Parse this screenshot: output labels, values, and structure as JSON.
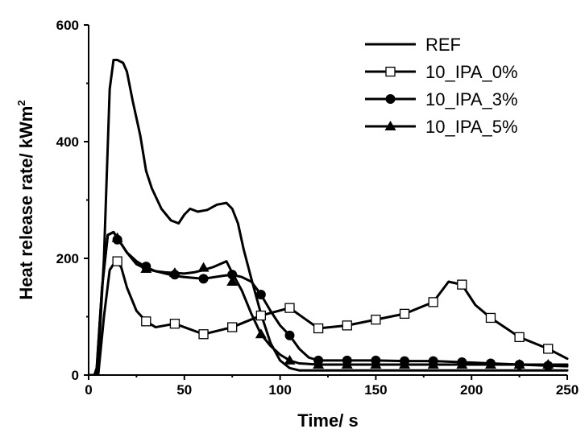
{
  "chart_data": {
    "type": "line",
    "title": "",
    "xlabel": "Time/ s",
    "ylabel_prefix": "Heat release rate/ kWm",
    "ylabel_superscript": "2",
    "xlim": [
      0,
      250
    ],
    "ylim": [
      0,
      600
    ],
    "x_ticks": [
      "0",
      "50",
      "100",
      "150",
      "200",
      "250"
    ],
    "y_ticks": [
      "0",
      "200",
      "400",
      "600"
    ],
    "grid": false,
    "legend_position": "top-right",
    "series": [
      {
        "name": "REF",
        "marker": "none",
        "x": [
          0,
          3,
          5,
          8,
          11,
          13,
          15,
          18,
          20,
          23,
          27,
          30,
          33,
          38,
          43,
          47,
          50,
          53,
          57,
          62,
          67,
          72,
          75,
          78,
          81,
          85,
          90,
          95,
          100,
          105,
          110,
          120,
          150,
          200,
          250
        ],
        "y": [
          0,
          0,
          20,
          200,
          490,
          540,
          540,
          535,
          520,
          470,
          410,
          350,
          320,
          285,
          265,
          260,
          275,
          285,
          280,
          283,
          292,
          295,
          285,
          260,
          215,
          165,
          105,
          55,
          25,
          12,
          8,
          8,
          8,
          8,
          8
        ]
      },
      {
        "name": "10_IPA_0%",
        "marker": "open-square",
        "x": [
          0,
          5,
          8,
          11,
          14,
          17,
          20,
          25,
          30,
          35,
          45,
          60,
          75,
          90,
          105,
          120,
          135,
          150,
          165,
          180,
          188,
          195,
          202,
          210,
          225,
          240,
          250
        ],
        "y": [
          0,
          0,
          100,
          180,
          195,
          185,
          150,
          110,
          92,
          82,
          88,
          70,
          82,
          102,
          115,
          80,
          85,
          95,
          105,
          125,
          160,
          155,
          120,
          98,
          65,
          45,
          28
        ],
        "markers_x": [
          15,
          30,
          45,
          60,
          75,
          90,
          105,
          120,
          135,
          150,
          165,
          180,
          195,
          210,
          225,
          240
        ],
        "markers_y": [
          195,
          92,
          88,
          70,
          82,
          102,
          115,
          80,
          85,
          95,
          105,
          125,
          155,
          98,
          65,
          45
        ]
      },
      {
        "name": "10_IPA_3%",
        "marker": "filled-circle",
        "x": [
          0,
          4,
          7,
          10,
          13,
          15,
          20,
          25,
          30,
          35,
          40,
          45,
          50,
          60,
          70,
          75,
          80,
          85,
          90,
          95,
          100,
          105,
          110,
          115,
          120,
          135,
          150,
          165,
          180,
          195,
          210,
          225,
          240,
          250
        ],
        "y": [
          0,
          0,
          150,
          240,
          245,
          235,
          210,
          195,
          185,
          178,
          174,
          170,
          168,
          165,
          170,
          172,
          168,
          160,
          138,
          110,
          85,
          68,
          45,
          30,
          25,
          25,
          25,
          24,
          24,
          22,
          20,
          18,
          16,
          15
        ],
        "markers_x": [
          15,
          30,
          45,
          60,
          75,
          90,
          105,
          120,
          135,
          150,
          165,
          180,
          195,
          210,
          225,
          240
        ],
        "markers_y": [
          232,
          186,
          172,
          165,
          172,
          138,
          68,
          25,
          25,
          25,
          24,
          24,
          22,
          20,
          18,
          16
        ]
      },
      {
        "name": "10_IPA_5%",
        "marker": "filled-triangle",
        "x": [
          0,
          4,
          7,
          10,
          13,
          15,
          20,
          25,
          30,
          35,
          40,
          45,
          50,
          55,
          60,
          65,
          70,
          72,
          75,
          80,
          85,
          90,
          95,
          100,
          105,
          110,
          120,
          135,
          150,
          165,
          180,
          195,
          210,
          225,
          240,
          250
        ],
        "y": [
          0,
          0,
          150,
          240,
          245,
          235,
          210,
          190,
          182,
          178,
          176,
          175,
          174,
          176,
          180,
          185,
          192,
          195,
          175,
          145,
          105,
          70,
          50,
          35,
          25,
          20,
          18,
          18,
          18,
          18,
          18,
          18,
          18,
          18,
          18,
          18
        ],
        "markers_x": [
          15,
          30,
          45,
          60,
          75,
          90,
          105,
          120,
          135,
          150,
          165,
          180,
          195,
          210,
          225,
          240
        ],
        "markers_y": [
          235,
          182,
          175,
          184,
          160,
          70,
          25,
          18,
          18,
          18,
          18,
          18,
          18,
          18,
          18,
          18
        ]
      }
    ]
  }
}
